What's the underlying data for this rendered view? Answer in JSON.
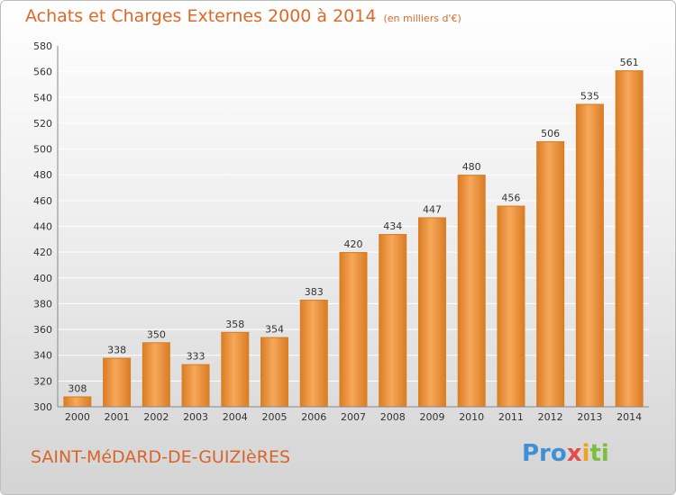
{
  "header": {
    "title": "Achats et Charges Externes 2000 à 2014",
    "subtitle": "(en milliers d'€)"
  },
  "footer": {
    "place": "SAINT-MéDARD-DE-GUIZIèRES",
    "logo": [
      "Pro",
      "x",
      "i",
      "ti"
    ]
  },
  "colors": {
    "bar_light": "#f7a85a",
    "bar_dark": "#d97b22",
    "accent": "#e06826"
  },
  "chart_data": {
    "type": "bar",
    "categories": [
      "2000",
      "2001",
      "2002",
      "2003",
      "2004",
      "2005",
      "2006",
      "2007",
      "2008",
      "2009",
      "2010",
      "2011",
      "2012",
      "2013",
      "2014"
    ],
    "values": [
      308,
      338,
      350,
      333,
      358,
      354,
      383,
      420,
      434,
      447,
      480,
      456,
      506,
      535,
      561
    ],
    "ylim": [
      300,
      580
    ],
    "yticks": [
      300,
      320,
      340,
      360,
      380,
      400,
      420,
      440,
      460,
      480,
      500,
      520,
      540,
      560,
      580
    ],
    "grid": true,
    "data_labels": true
  }
}
